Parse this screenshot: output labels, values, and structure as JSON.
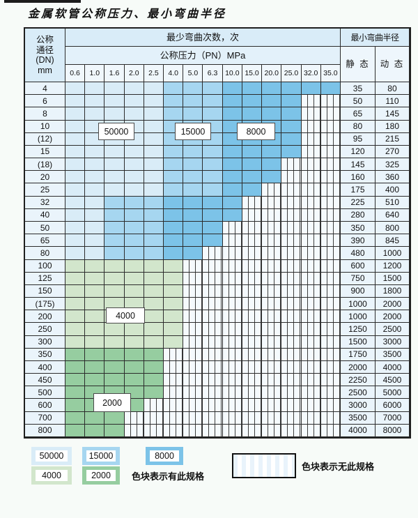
{
  "title": "金属软管公称压力、最小弯曲半径",
  "colors": {
    "light_blue": "#d9ecf7",
    "mid_blue": "#a6d6f0",
    "dark_blue": "#7cc3e8",
    "light_green": "#d2e6cc",
    "mid_green": "#96cda0"
  },
  "header": {
    "dn_lines": [
      "公称",
      "通径",
      "(DN)",
      "mm"
    ],
    "bend_cycles": "最少弯曲次数，次",
    "pressure_title": "公称压力（PN）MPa",
    "pressures": [
      "0.6",
      "1.0",
      "1.6",
      "2.0",
      "2.5",
      "4.0",
      "5.0",
      "6.3",
      "10.0",
      "15.0",
      "20.0",
      "25.0",
      "32.0",
      "35.0"
    ],
    "min_radius": "最小弯曲半径",
    "static_label": "静 态",
    "dynamic_label": "动 态"
  },
  "zone_labels": [
    "50000",
    "15000",
    "8000",
    "4000",
    "2000"
  ],
  "rows": [
    {
      "dn": "4",
      "static": "35",
      "dynamic": "80",
      "zones": [
        [
          "light_blue",
          0,
          4
        ],
        [
          "mid_blue",
          5,
          7
        ],
        [
          "dark_blue",
          8,
          13
        ]
      ]
    },
    {
      "dn": "6",
      "static": "50",
      "dynamic": "110",
      "zones": [
        [
          "light_blue",
          0,
          4
        ],
        [
          "mid_blue",
          5,
          7
        ],
        [
          "dark_blue",
          8,
          11
        ]
      ]
    },
    {
      "dn": "8",
      "static": "65",
      "dynamic": "145",
      "zones": [
        [
          "light_blue",
          0,
          4
        ],
        [
          "mid_blue",
          5,
          7
        ],
        [
          "dark_blue",
          8,
          11
        ]
      ]
    },
    {
      "dn": "10",
      "static": "80",
      "dynamic": "180",
      "zones": [
        [
          "light_blue",
          0,
          4
        ],
        [
          "mid_blue",
          5,
          7
        ],
        [
          "dark_blue",
          8,
          11
        ]
      ]
    },
    {
      "dn": "(12)",
      "static": "95",
      "dynamic": "215",
      "zones": [
        [
          "light_blue",
          0,
          4
        ],
        [
          "mid_blue",
          5,
          7
        ],
        [
          "dark_blue",
          8,
          11
        ]
      ]
    },
    {
      "dn": "15",
      "static": "120",
      "dynamic": "270",
      "zones": [
        [
          "light_blue",
          0,
          4
        ],
        [
          "mid_blue",
          5,
          7
        ],
        [
          "dark_blue",
          8,
          11
        ]
      ]
    },
    {
      "dn": "(18)",
      "static": "145",
      "dynamic": "325",
      "zones": [
        [
          "light_blue",
          0,
          4
        ],
        [
          "mid_blue",
          5,
          7
        ],
        [
          "dark_blue",
          8,
          10
        ]
      ]
    },
    {
      "dn": "20",
      "static": "160",
      "dynamic": "360",
      "zones": [
        [
          "light_blue",
          0,
          4
        ],
        [
          "mid_blue",
          5,
          7
        ],
        [
          "dark_blue",
          8,
          10
        ]
      ]
    },
    {
      "dn": "25",
      "static": "175",
      "dynamic": "400",
      "zones": [
        [
          "light_blue",
          0,
          4
        ],
        [
          "mid_blue",
          5,
          7
        ],
        [
          "dark_blue",
          8,
          9
        ]
      ]
    },
    {
      "dn": "32",
      "static": "225",
      "dynamic": "510",
      "zones": [
        [
          "light_blue",
          0,
          1
        ],
        [
          "mid_blue",
          2,
          4
        ],
        [
          "dark_blue",
          5,
          8
        ]
      ]
    },
    {
      "dn": "40",
      "static": "280",
      "dynamic": "640",
      "zones": [
        [
          "light_blue",
          0,
          1
        ],
        [
          "mid_blue",
          2,
          4
        ],
        [
          "dark_blue",
          5,
          8
        ]
      ]
    },
    {
      "dn": "50",
      "static": "350",
      "dynamic": "800",
      "zones": [
        [
          "light_blue",
          0,
          1
        ],
        [
          "mid_blue",
          2,
          4
        ],
        [
          "dark_blue",
          5,
          7
        ]
      ]
    },
    {
      "dn": "65",
      "static": "390",
      "dynamic": "845",
      "zones": [
        [
          "light_blue",
          0,
          1
        ],
        [
          "mid_blue",
          2,
          4
        ],
        [
          "dark_blue",
          5,
          7
        ]
      ]
    },
    {
      "dn": "80",
      "static": "480",
      "dynamic": "1000",
      "zones": [
        [
          "light_blue",
          0,
          1
        ],
        [
          "mid_blue",
          2,
          4
        ],
        [
          "dark_blue",
          5,
          6
        ]
      ]
    },
    {
      "dn": "100",
      "static": "600",
      "dynamic": "1200",
      "zones": [
        [
          "light_green",
          0,
          5
        ]
      ]
    },
    {
      "dn": "125",
      "static": "750",
      "dynamic": "1500",
      "zones": [
        [
          "light_green",
          0,
          5
        ]
      ]
    },
    {
      "dn": "150",
      "static": "900",
      "dynamic": "1800",
      "zones": [
        [
          "light_green",
          0,
          5
        ]
      ]
    },
    {
      "dn": "(175)",
      "static": "1000",
      "dynamic": "2000",
      "zones": [
        [
          "light_green",
          0,
          5
        ]
      ]
    },
    {
      "dn": "200",
      "static": "1000",
      "dynamic": "2000",
      "zones": [
        [
          "light_green",
          0,
          5
        ]
      ]
    },
    {
      "dn": "250",
      "static": "1250",
      "dynamic": "2500",
      "zones": [
        [
          "light_green",
          0,
          5
        ]
      ]
    },
    {
      "dn": "300",
      "static": "1500",
      "dynamic": "3000",
      "zones": [
        [
          "light_green",
          0,
          5
        ]
      ]
    },
    {
      "dn": "350",
      "static": "1750",
      "dynamic": "3500",
      "zones": [
        [
          "mid_green",
          0,
          4
        ]
      ]
    },
    {
      "dn": "400",
      "static": "2000",
      "dynamic": "4000",
      "zones": [
        [
          "mid_green",
          0,
          4
        ]
      ]
    },
    {
      "dn": "450",
      "static": "2250",
      "dynamic": "4500",
      "zones": [
        [
          "mid_green",
          0,
          4
        ]
      ]
    },
    {
      "dn": "500",
      "static": "2500",
      "dynamic": "5000",
      "zones": [
        [
          "mid_green",
          0,
          4
        ]
      ]
    },
    {
      "dn": "600",
      "static": "3000",
      "dynamic": "6000",
      "zones": [
        [
          "mid_green",
          0,
          3
        ]
      ]
    },
    {
      "dn": "700",
      "static": "3500",
      "dynamic": "7000",
      "zones": [
        [
          "mid_green",
          0,
          2
        ]
      ]
    },
    {
      "dn": "800",
      "static": "4000",
      "dynamic": "8000",
      "zones": [
        [
          "mid_green",
          0,
          2
        ]
      ]
    }
  ],
  "legend": {
    "chips": [
      {
        "label": "50000",
        "color": "light_blue"
      },
      {
        "label": "15000",
        "color": "mid_blue"
      },
      {
        "label": "8000",
        "color": "dark_blue"
      },
      {
        "label": "4000",
        "color": "light_green"
      },
      {
        "label": "2000",
        "color": "mid_green"
      }
    ],
    "has_spec": "色块表示有此规格",
    "no_spec": "色块表示无此规格"
  }
}
